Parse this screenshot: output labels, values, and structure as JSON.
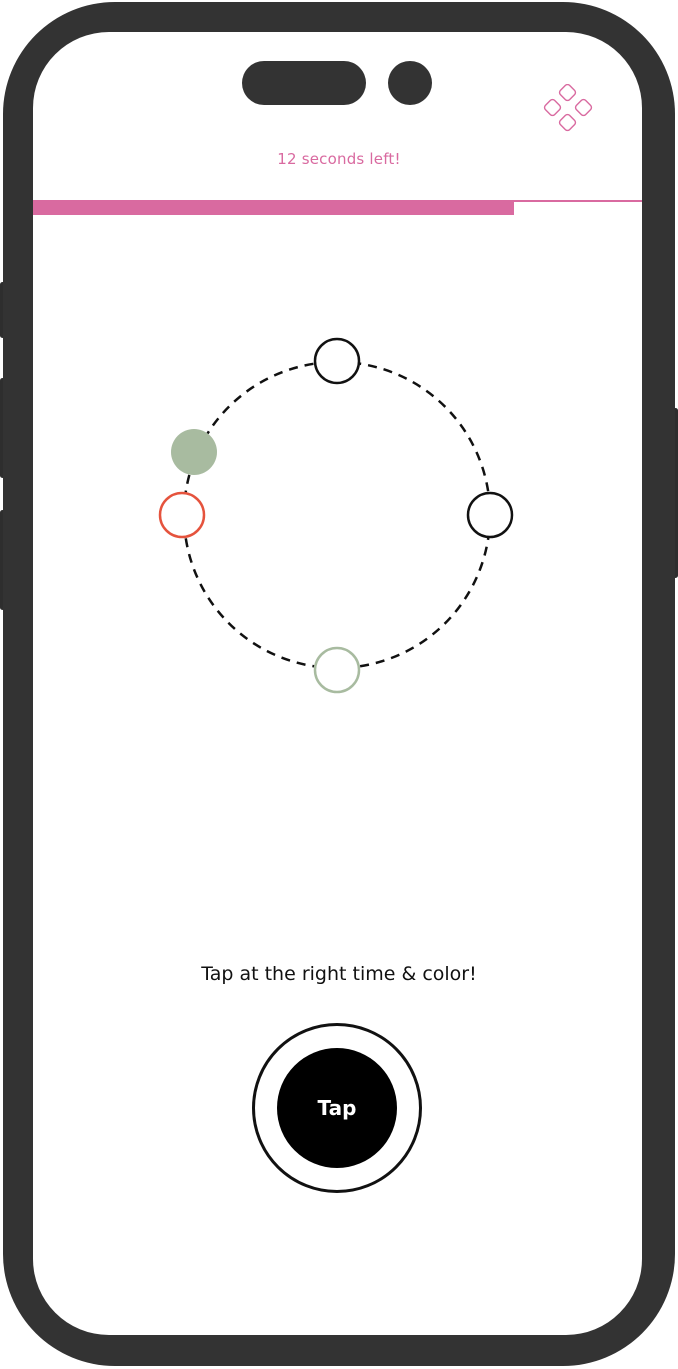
{
  "game": {
    "timer_text": "12 seconds left!",
    "progress_fraction": 0.79,
    "instruction": "Tap at the right time & color!",
    "tap_label": "Tap",
    "logo_icon": "four-diamonds-logo-icon",
    "active_dot_color": "#a8bba0",
    "markers": [
      {
        "name": "marker-top",
        "color": "#111111"
      },
      {
        "name": "marker-right",
        "color": "#111111"
      },
      {
        "name": "marker-bottom",
        "color": "#a8bba0"
      },
      {
        "name": "marker-left",
        "color": "#e5533d"
      }
    ]
  },
  "colors": {
    "accent": "#d96aa0",
    "frame": "#333333",
    "green": "#a8bba0",
    "red": "#e5533d",
    "black": "#111111"
  }
}
